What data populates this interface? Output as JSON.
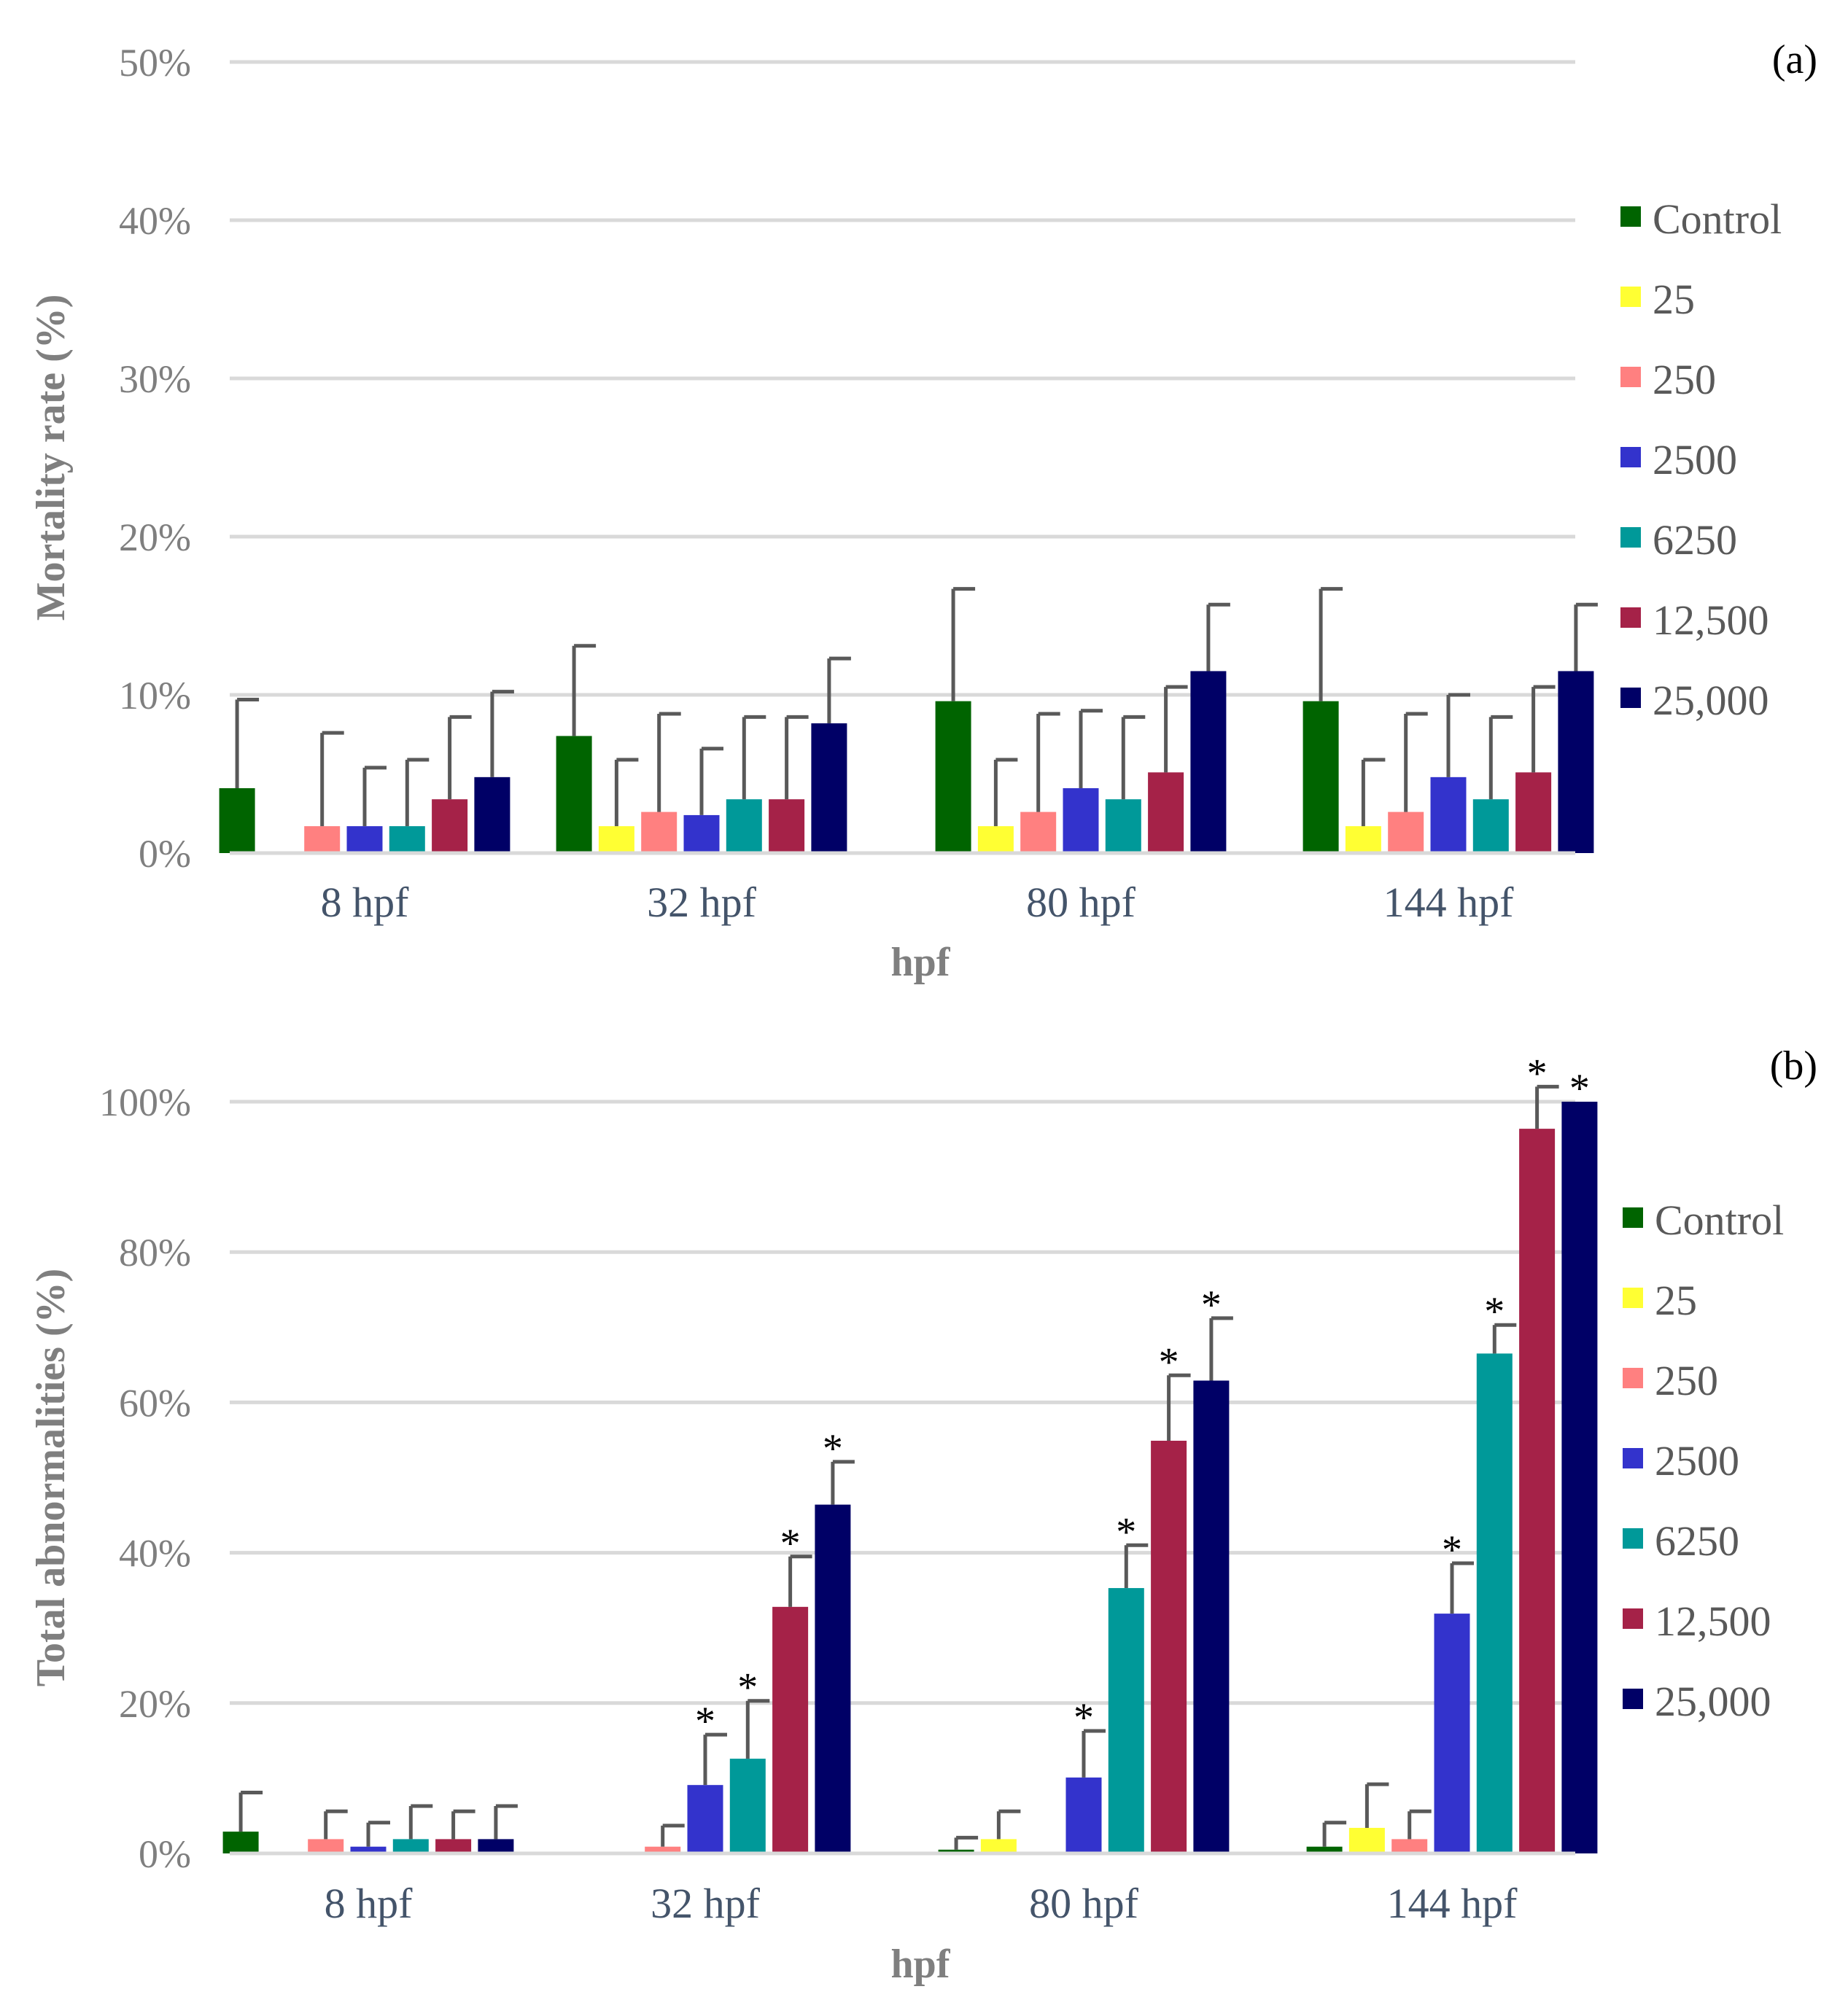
{
  "chart_data": [
    {
      "type": "bar",
      "panel_label": "(a)",
      "categories": [
        "8 hpf",
        "32 hpf",
        "80 hpf",
        "144 hpf"
      ],
      "xlabel": "hpf",
      "ylabel": "Mortality rate (%)",
      "ylim": [
        0,
        50
      ],
      "yticks": [
        "0%",
        "10%",
        "20%",
        "30%",
        "40%",
        "50%"
      ],
      "ytick_values": [
        0,
        10,
        20,
        30,
        40,
        50
      ],
      "legend_position": "right",
      "series": [
        {
          "name": "Control",
          "color": "#006400",
          "values": [
            4.1,
            7.4,
            9.6,
            9.6
          ],
          "errors": [
            5.6,
            5.7,
            7.1,
            7.1
          ],
          "stars": [
            false,
            false,
            false,
            false
          ]
        },
        {
          "name": "25",
          "color": "#ffff33",
          "values": [
            0,
            1.7,
            1.7,
            1.7
          ],
          "errors": [
            0,
            4.2,
            4.2,
            4.2
          ],
          "stars": [
            false,
            false,
            false,
            false
          ]
        },
        {
          "name": "250",
          "color": "#ff8080",
          "values": [
            1.7,
            2.6,
            2.6,
            2.6
          ],
          "errors": [
            5.9,
            6.2,
            6.2,
            6.2
          ],
          "stars": [
            false,
            false,
            false,
            false
          ]
        },
        {
          "name": "2500",
          "color": "#3333cc",
          "values": [
            1.7,
            2.4,
            4.1,
            4.8
          ],
          "errors": [
            3.7,
            4.2,
            4.9,
            5.2
          ],
          "stars": [
            false,
            false,
            false,
            false
          ]
        },
        {
          "name": "6250",
          "color": "#009999",
          "values": [
            1.7,
            3.4,
            3.4,
            3.4
          ],
          "errors": [
            4.2,
            5.2,
            5.2,
            5.2
          ],
          "stars": [
            false,
            false,
            false,
            false
          ]
        },
        {
          "name": "12,500",
          "color": "#a52248",
          "values": [
            3.4,
            3.4,
            5.1,
            5.1
          ],
          "errors": [
            5.2,
            5.2,
            5.4,
            5.4
          ],
          "stars": [
            false,
            false,
            false,
            false
          ]
        },
        {
          "name": "25,000",
          "color": "#000066",
          "values": [
            4.8,
            8.2,
            11.5,
            11.5
          ],
          "errors": [
            5.4,
            4.1,
            4.2,
            4.2
          ],
          "stars": [
            false,
            false,
            false,
            false
          ]
        }
      ]
    },
    {
      "type": "bar",
      "panel_label": "(b)",
      "categories": [
        "8 hpf",
        "32 hpf",
        "80 hpf",
        "144 hpf"
      ],
      "xlabel": "hpf",
      "ylabel": "Total abnormalities (%)",
      "ylim": [
        0,
        100
      ],
      "yticks": [
        "0%",
        "20%",
        "40%",
        "60%",
        "80%",
        "100%"
      ],
      "ytick_values": [
        0,
        20,
        40,
        60,
        80,
        100
      ],
      "legend_position": "right",
      "star_symbol": "*",
      "series": [
        {
          "name": "Control",
          "color": "#006400",
          "values": [
            2.9,
            0,
            0.5,
            0.9
          ],
          "errors": [
            5.2,
            0,
            1.6,
            3.2
          ],
          "stars": [
            false,
            false,
            false,
            false
          ]
        },
        {
          "name": "25",
          "color": "#ffff33",
          "values": [
            0,
            0,
            1.9,
            3.4
          ],
          "errors": [
            0,
            0,
            3.7,
            5.8
          ],
          "stars": [
            false,
            false,
            false,
            false
          ]
        },
        {
          "name": "250",
          "color": "#ff8080",
          "values": [
            1.9,
            0.9,
            0,
            1.9
          ],
          "errors": [
            3.7,
            2.8,
            0,
            3.7
          ],
          "stars": [
            false,
            false,
            false,
            false
          ]
        },
        {
          "name": "2500",
          "color": "#3333cc",
          "values": [
            0.9,
            9.1,
            10.1,
            31.9
          ],
          "errors": [
            3.2,
            6.7,
            6.2,
            6.7
          ],
          "stars": [
            false,
            true,
            true,
            true
          ]
        },
        {
          "name": "6250",
          "color": "#009999",
          "values": [
            1.9,
            12.6,
            35.3,
            66.5
          ],
          "errors": [
            4.4,
            7.7,
            5.7,
            3.8
          ],
          "stars": [
            false,
            true,
            true,
            true
          ]
        },
        {
          "name": "12,500",
          "color": "#a52248",
          "values": [
            1.9,
            32.8,
            54.9,
            96.4
          ],
          "errors": [
            3.7,
            6.7,
            8.7,
            5.6
          ],
          "stars": [
            false,
            true,
            true,
            true
          ]
        },
        {
          "name": "25,000",
          "color": "#000066",
          "values": [
            1.9,
            46.4,
            62.9,
            100
          ],
          "errors": [
            4.4,
            5.7,
            8.3,
            0
          ],
          "stars": [
            false,
            true,
            true,
            true
          ]
        }
      ]
    }
  ]
}
